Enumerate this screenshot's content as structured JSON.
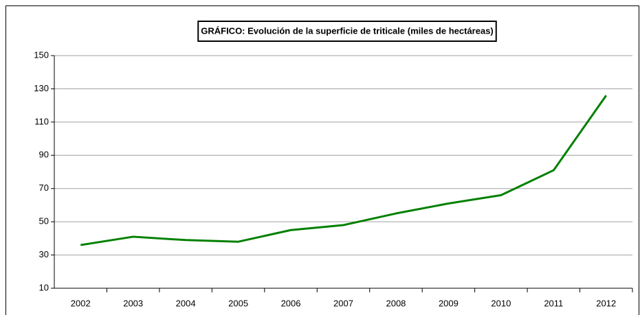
{
  "chart_data": {
    "type": "line",
    "title": "GRÁFICO: Evolución de la superficie de triticale (miles de hectáreas)",
    "categories": [
      "2002",
      "2003",
      "2004",
      "2005",
      "2006",
      "2007",
      "2008",
      "2009",
      "2010",
      "2011",
      "2012"
    ],
    "series": [
      {
        "name": "Superficie",
        "color": "#008000",
        "values": [
          36,
          41,
          39,
          38,
          45,
          48,
          55,
          61,
          66,
          81,
          126
        ]
      }
    ],
    "ylim": [
      10,
      150
    ],
    "yticks": [
      10,
      30,
      50,
      70,
      90,
      110,
      130,
      150
    ],
    "grid": true
  }
}
